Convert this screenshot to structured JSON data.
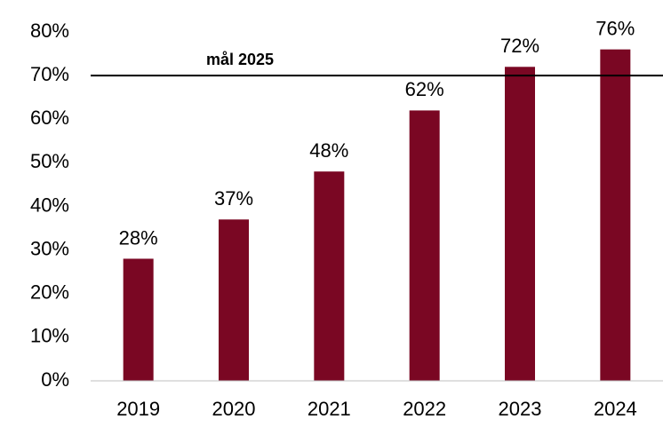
{
  "chart_data": {
    "type": "bar",
    "categories": [
      "2019",
      "2020",
      "2021",
      "2022",
      "2023",
      "2024"
    ],
    "values": [
      28,
      37,
      48,
      62,
      72,
      76
    ],
    "value_labels": [
      "28%",
      "37%",
      "48%",
      "62%",
      "72%",
      "76%"
    ],
    "color": "#7a0723",
    "ylim": [
      0,
      80
    ],
    "yticks": [
      {
        "value": 0,
        "label": "0%"
      },
      {
        "value": 10,
        "label": "10%"
      },
      {
        "value": 20,
        "label": "20%"
      },
      {
        "value": 30,
        "label": "30%"
      },
      {
        "value": 40,
        "label": "40%"
      },
      {
        "value": 50,
        "label": "50%"
      },
      {
        "value": 60,
        "label": "60%"
      },
      {
        "value": 70,
        "label": "70%"
      },
      {
        "value": 80,
        "label": "80%"
      }
    ],
    "grid": false,
    "reference_lines": [
      {
        "value": 70,
        "label": "mål 2025"
      }
    ]
  }
}
